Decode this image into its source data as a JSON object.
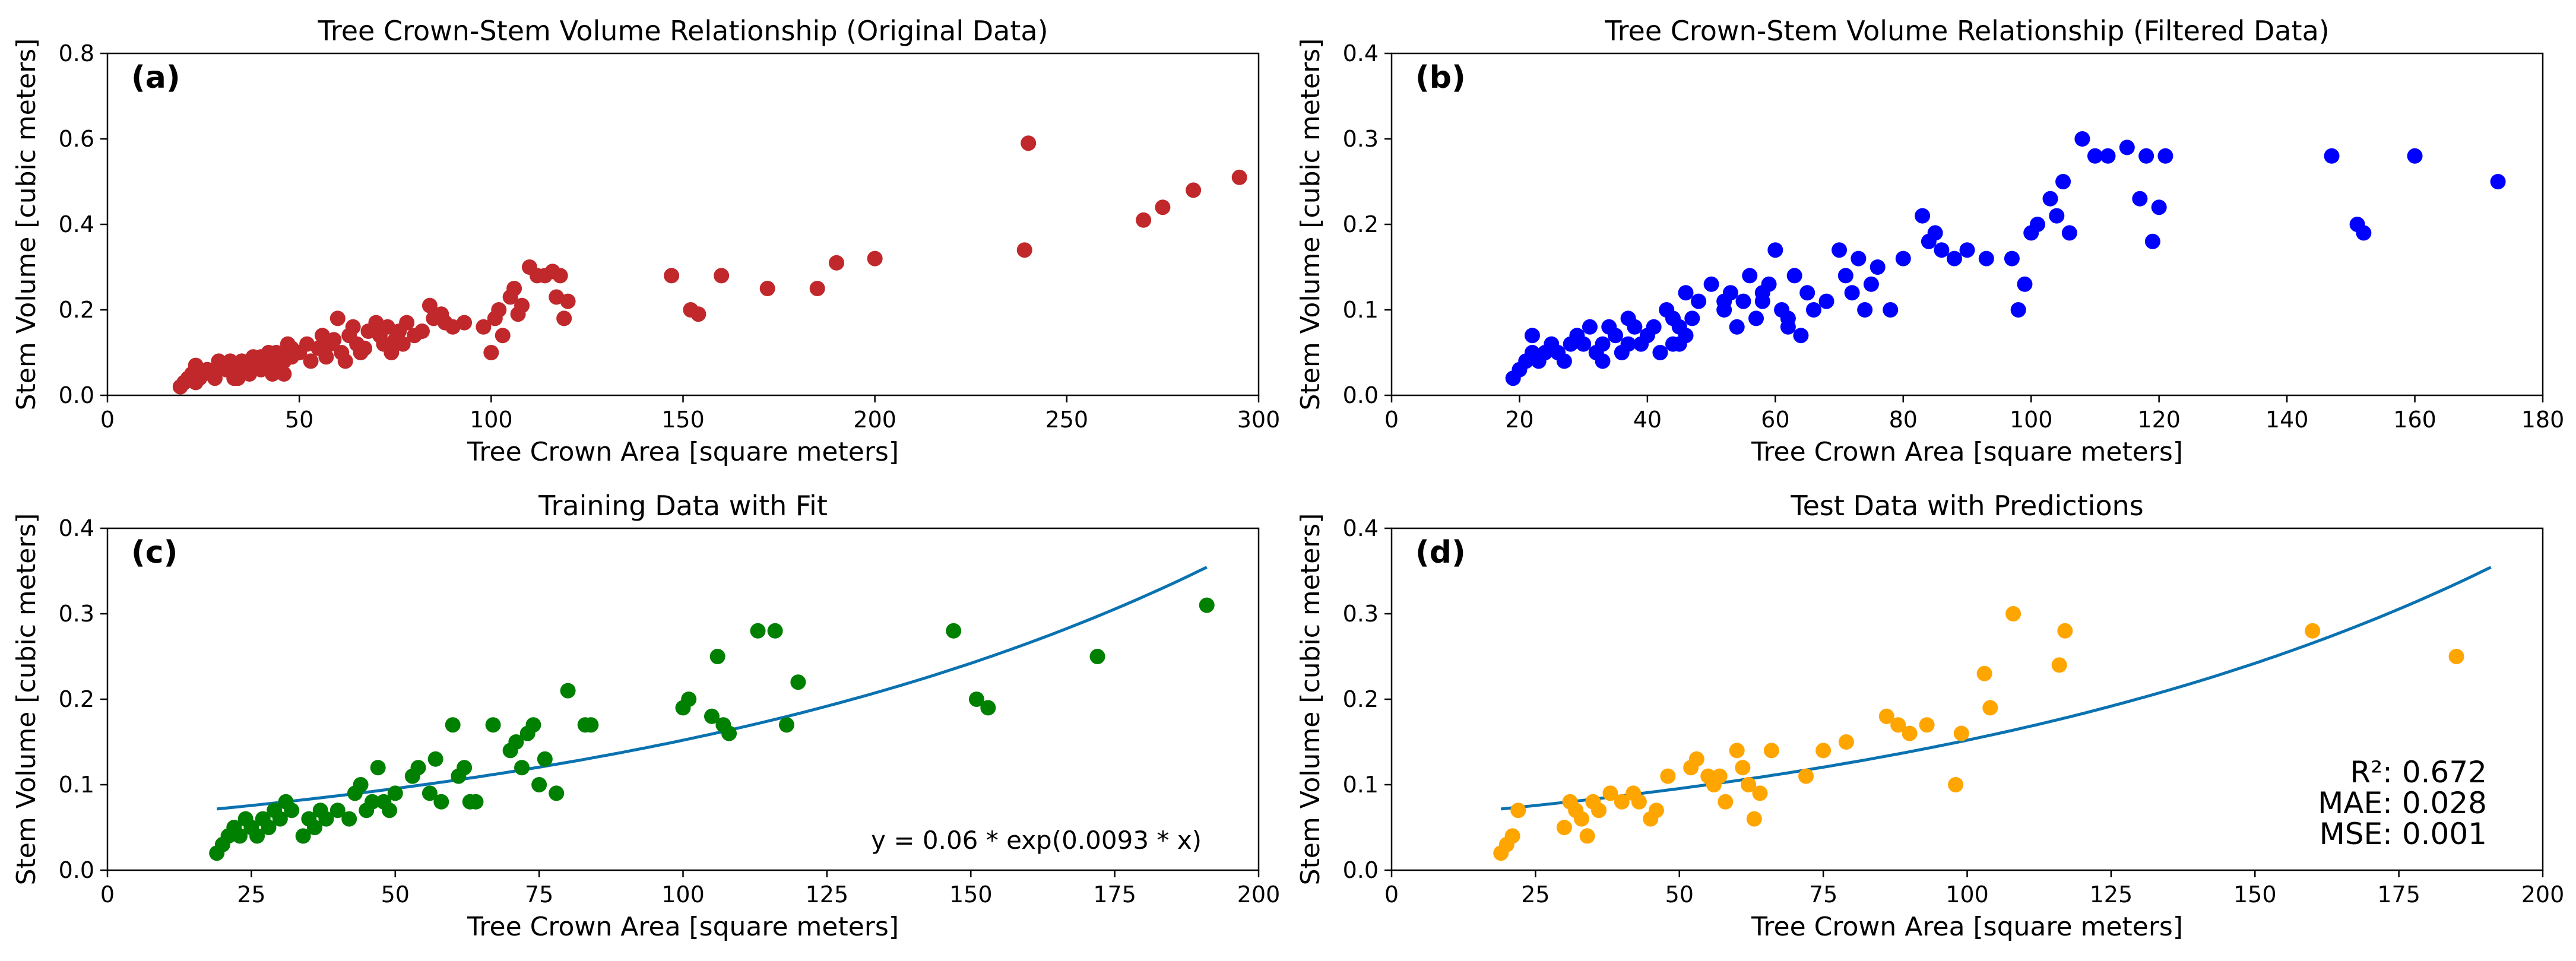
{
  "chart_data": [
    {
      "type": "scatter",
      "panel_label": "(a)",
      "title": "Tree Crown-Stem Volume Relationship (Original Data)",
      "xlabel": "Tree Crown Area [square meters]",
      "ylabel": "Stem Volume [cubic meters]",
      "xlim": [
        0,
        300
      ],
      "ylim": [
        0,
        0.8
      ],
      "xticks": [
        0,
        50,
        100,
        150,
        200,
        250,
        300
      ],
      "yticks": [
        0.0,
        0.2,
        0.4,
        0.6,
        0.8
      ],
      "marker_color": "#c0282b",
      "series": [
        {
          "x": [
            19,
            20,
            21,
            22,
            23,
            24,
            25,
            26,
            27,
            28,
            29,
            30,
            31,
            32,
            33,
            34,
            35,
            36,
            37,
            38,
            39,
            40,
            41,
            42,
            43,
            44,
            45,
            46,
            47,
            48,
            20,
            22,
            24,
            27,
            30,
            33,
            36,
            40,
            43,
            46,
            23,
            26,
            29,
            34,
            38,
            42,
            45,
            48,
            50,
            52,
            53,
            55,
            56,
            57,
            58,
            59,
            60,
            61,
            62,
            63,
            64,
            65,
            66,
            67,
            68,
            70,
            71,
            72,
            73,
            74,
            75,
            76,
            77,
            78,
            80,
            82,
            84,
            85,
            87,
            88,
            90,
            93,
            98,
            100,
            101,
            102,
            103,
            105,
            106,
            107,
            108,
            110,
            112,
            114,
            116,
            117,
            118,
            119,
            120,
            147,
            152,
            154,
            160,
            172,
            185,
            190,
            200,
            239,
            240,
            270,
            275,
            283,
            295
          ],
          "y": [
            0.02,
            0.03,
            0.04,
            0.05,
            0.07,
            0.04,
            0.05,
            0.06,
            0.05,
            0.04,
            0.06,
            0.07,
            0.06,
            0.08,
            0.05,
            0.06,
            0.08,
            0.07,
            0.05,
            0.09,
            0.08,
            0.06,
            0.07,
            0.08,
            0.05,
            0.1,
            0.06,
            0.08,
            0.12,
            0.09,
            0.03,
            0.04,
            0.06,
            0.05,
            0.07,
            0.04,
            0.06,
            0.09,
            0.07,
            0.05,
            0.03,
            0.06,
            0.08,
            0.04,
            0.07,
            0.1,
            0.09,
            0.11,
            0.1,
            0.12,
            0.08,
            0.11,
            0.14,
            0.09,
            0.12,
            0.13,
            0.18,
            0.1,
            0.08,
            0.14,
            0.16,
            0.12,
            0.1,
            0.11,
            0.15,
            0.17,
            0.14,
            0.12,
            0.16,
            0.1,
            0.13,
            0.15,
            0.12,
            0.17,
            0.14,
            0.15,
            0.21,
            0.18,
            0.19,
            0.17,
            0.16,
            0.17,
            0.16,
            0.1,
            0.18,
            0.2,
            0.14,
            0.23,
            0.25,
            0.19,
            0.21,
            0.3,
            0.28,
            0.28,
            0.29,
            0.23,
            0.28,
            0.18,
            0.22,
            0.28,
            0.2,
            0.19,
            0.28,
            0.25,
            0.25,
            0.31,
            0.32,
            0.34,
            0.59,
            0.41,
            0.44,
            0.48,
            0.51
          ]
        }
      ]
    },
    {
      "type": "scatter",
      "panel_label": "(b)",
      "title": "Tree Crown-Stem Volume Relationship (Filtered Data)",
      "xlabel": "Tree Crown Area [square meters]",
      "ylabel": "Stem Volume [cubic meters]",
      "xlim": [
        0,
        180
      ],
      "ylim": [
        0,
        0.4
      ],
      "xticks": [
        0,
        20,
        40,
        60,
        80,
        100,
        120,
        140,
        160,
        180
      ],
      "yticks": [
        0.0,
        0.1,
        0.2,
        0.3,
        0.4
      ],
      "marker_color": "#0000ff",
      "series": [
        {
          "x": [
            19,
            20,
            21,
            22,
            22,
            23,
            24,
            25,
            26,
            27,
            28,
            29,
            30,
            31,
            32,
            33,
            34,
            35,
            36,
            37,
            38,
            39,
            40,
            41,
            42,
            43,
            44,
            45,
            46,
            47,
            48,
            50,
            52,
            53,
            54,
            55,
            56,
            57,
            58,
            59,
            60,
            61,
            62,
            63,
            64,
            65,
            66,
            68,
            70,
            71,
            72,
            73,
            74,
            75,
            76,
            78,
            80,
            83,
            84,
            85,
            86,
            88,
            90,
            93,
            98,
            99,
            100,
            101,
            103,
            105,
            106,
            108,
            110,
            112,
            115,
            117,
            118,
            119,
            120,
            121,
            147,
            151,
            152,
            160,
            173,
            33,
            37,
            44,
            46,
            58,
            62,
            97,
            104,
            45,
            52
          ],
          "y": [
            0.02,
            0.03,
            0.04,
            0.05,
            0.07,
            0.04,
            0.05,
            0.06,
            0.05,
            0.04,
            0.06,
            0.07,
            0.06,
            0.08,
            0.05,
            0.06,
            0.08,
            0.07,
            0.05,
            0.09,
            0.08,
            0.06,
            0.07,
            0.08,
            0.05,
            0.1,
            0.06,
            0.08,
            0.12,
            0.09,
            0.11,
            0.13,
            0.1,
            0.12,
            0.08,
            0.11,
            0.14,
            0.09,
            0.12,
            0.13,
            0.17,
            0.1,
            0.08,
            0.14,
            0.07,
            0.12,
            0.1,
            0.11,
            0.17,
            0.14,
            0.12,
            0.16,
            0.1,
            0.13,
            0.15,
            0.1,
            0.16,
            0.21,
            0.18,
            0.19,
            0.17,
            0.16,
            0.17,
            0.16,
            0.1,
            0.13,
            0.19,
            0.2,
            0.23,
            0.25,
            0.19,
            0.3,
            0.28,
            0.28,
            0.29,
            0.23,
            0.28,
            0.18,
            0.22,
            0.28,
            0.28,
            0.2,
            0.19,
            0.28,
            0.25,
            0.04,
            0.06,
            0.09,
            0.07,
            0.11,
            0.09,
            0.16,
            0.21,
            0.06,
            0.11
          ]
        }
      ]
    },
    {
      "type": "scatter",
      "panel_label": "(c)",
      "title": "Training Data with Fit",
      "xlabel": "Tree Crown Area [square meters]",
      "ylabel": "Stem Volume [cubic meters]",
      "xlim": [
        0,
        200
      ],
      "ylim": [
        0,
        0.4
      ],
      "xticks": [
        0,
        25,
        50,
        75,
        100,
        125,
        150,
        175,
        200
      ],
      "yticks": [
        0.0,
        0.1,
        0.2,
        0.3,
        0.4
      ],
      "marker_color": "#008000",
      "annotation": "y = 0.06 * exp(0.0093 * x)",
      "fit": {
        "a": 0.06,
        "b": 0.0093,
        "x_range": [
          19,
          191
        ],
        "color": "#0a72b0"
      },
      "series": [
        {
          "x": [
            19,
            20,
            21,
            22,
            23,
            24,
            25,
            26,
            27,
            28,
            29,
            30,
            31,
            32,
            34,
            35,
            36,
            37,
            38,
            40,
            42,
            43,
            44,
            45,
            46,
            47,
            48,
            49,
            50,
            53,
            54,
            56,
            57,
            58,
            60,
            61,
            62,
            63,
            64,
            67,
            70,
            71,
            72,
            73,
            74,
            75,
            76,
            78,
            80,
            83,
            84,
            100,
            101,
            105,
            106,
            107,
            108,
            113,
            116,
            118,
            120,
            147,
            151,
            153,
            172,
            191
          ],
          "y": [
            0.02,
            0.03,
            0.04,
            0.05,
            0.04,
            0.06,
            0.05,
            0.04,
            0.06,
            0.05,
            0.07,
            0.06,
            0.08,
            0.07,
            0.04,
            0.06,
            0.05,
            0.07,
            0.06,
            0.07,
            0.06,
            0.09,
            0.1,
            0.07,
            0.08,
            0.12,
            0.08,
            0.07,
            0.09,
            0.11,
            0.12,
            0.09,
            0.13,
            0.08,
            0.17,
            0.11,
            0.12,
            0.08,
            0.08,
            0.17,
            0.14,
            0.15,
            0.12,
            0.16,
            0.17,
            0.1,
            0.13,
            0.09,
            0.21,
            0.17,
            0.17,
            0.19,
            0.2,
            0.18,
            0.25,
            0.17,
            0.16,
            0.28,
            0.28,
            0.17,
            0.22,
            0.28,
            0.2,
            0.19,
            0.25,
            0.31
          ]
        }
      ]
    },
    {
      "type": "scatter",
      "panel_label": "(d)",
      "title": "Test Data with Predictions",
      "xlabel": "Tree Crown Area [square meters]",
      "ylabel": "Stem Volume [cubic meters]",
      "xlim": [
        0,
        200
      ],
      "ylim": [
        0,
        0.4
      ],
      "xticks": [
        0,
        25,
        50,
        75,
        100,
        125,
        150,
        175,
        200
      ],
      "yticks": [
        0.0,
        0.1,
        0.2,
        0.3,
        0.4
      ],
      "marker_color": "#ffa500",
      "metrics": [
        "R²: 0.672",
        "MAE: 0.028",
        "MSE: 0.001"
      ],
      "fit": {
        "a": 0.06,
        "b": 0.0093,
        "x_range": [
          19,
          191
        ],
        "color": "#0a72b0"
      },
      "series": [
        {
          "x": [
            19,
            20,
            21,
            22,
            30,
            31,
            32,
            33,
            34,
            35,
            36,
            38,
            40,
            42,
            43,
            45,
            46,
            48,
            52,
            53,
            55,
            56,
            57,
            58,
            60,
            61,
            62,
            63,
            64,
            66,
            72,
            75,
            79,
            86,
            88,
            90,
            93,
            98,
            99,
            103,
            104,
            108,
            116,
            117,
            160,
            185
          ],
          "y": [
            0.02,
            0.03,
            0.04,
            0.07,
            0.05,
            0.08,
            0.07,
            0.06,
            0.04,
            0.08,
            0.07,
            0.09,
            0.08,
            0.09,
            0.08,
            0.06,
            0.07,
            0.11,
            0.12,
            0.13,
            0.11,
            0.1,
            0.11,
            0.08,
            0.14,
            0.12,
            0.1,
            0.06,
            0.09,
            0.14,
            0.11,
            0.14,
            0.15,
            0.18,
            0.17,
            0.16,
            0.17,
            0.1,
            0.16,
            0.23,
            0.19,
            0.3,
            0.24,
            0.28,
            0.28,
            0.25
          ]
        }
      ]
    }
  ]
}
